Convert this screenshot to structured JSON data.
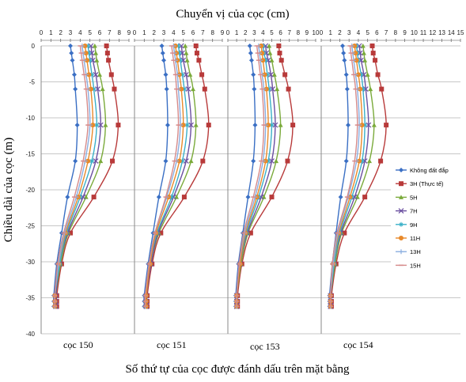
{
  "chart_data": {
    "type": "line",
    "title": "Chuyển vị của cọc (cm)",
    "ylabel": "Chiều dài của cọc (m)",
    "xlabel": "Số thứ tự của cọc được đánh dấu trên mặt bằng",
    "ylim": [
      -40,
      0
    ],
    "y_ticks": [
      0,
      -5,
      -10,
      -15,
      -20,
      -25,
      -30,
      -35,
      -40
    ],
    "depths": [
      0,
      -1,
      -2,
      -4,
      -6,
      -11,
      -16,
      -21,
      -26,
      -30.3,
      -34.7,
      -35.5,
      -36.2
    ],
    "series_names": [
      "Không đất đắp",
      "3H (Thực tế)",
      "5H",
      "7H",
      "9H",
      "11H",
      "13H",
      "15H"
    ],
    "series_colors": [
      "#3a6fc4",
      "#b83a3a",
      "#7aaa3a",
      "#6b4fa0",
      "#3ab0c8",
      "#e8892a",
      "#8aaee0",
      "#d68a8a"
    ],
    "series_markers": [
      "diamond",
      "square",
      "triangle",
      "x",
      "star",
      "circle",
      "plus",
      "dash"
    ],
    "legend_position": "right",
    "panels": [
      {
        "label": "cọc 150",
        "xlim": [
          0,
          9
        ],
        "x_ticks": [
          0,
          1,
          2,
          3,
          4,
          5,
          6,
          7,
          8,
          9
        ],
        "series": [
          {
            "name": "Không đất đắp",
            "x": [
              3.0,
              3.1,
              3.2,
              3.4,
              3.5,
              3.7,
              3.5,
              2.7,
              2.1,
              1.6,
              1.3,
              1.3,
              1.3
            ]
          },
          {
            "name": "3H (Thực tế)",
            "x": [
              6.7,
              6.8,
              6.9,
              7.2,
              7.5,
              7.9,
              7.3,
              5.4,
              3.0,
              2.1,
              1.6,
              1.6,
              1.6
            ]
          },
          {
            "name": "5H",
            "x": [
              5.5,
              5.6,
              5.7,
              6.0,
              6.3,
              6.6,
              6.1,
              4.6,
              2.8,
              2.0,
              1.5,
              1.5,
              1.5
            ]
          },
          {
            "name": "7H",
            "x": [
              5.1,
              5.2,
              5.3,
              5.6,
              5.8,
              6.1,
              5.6,
              4.3,
              2.7,
              1.9,
              1.5,
              1.5,
              1.5
            ]
          },
          {
            "name": "9H",
            "x": [
              4.8,
              4.9,
              5.0,
              5.2,
              5.4,
              5.7,
              5.2,
              4.0,
              2.6,
              1.9,
              1.4,
              1.4,
              1.4
            ]
          },
          {
            "name": "11H",
            "x": [
              4.5,
              4.6,
              4.7,
              4.9,
              5.1,
              5.3,
              4.8,
              3.8,
              2.5,
              1.8,
              1.4,
              1.4,
              1.4
            ]
          },
          {
            "name": "13H",
            "x": [
              4.2,
              4.3,
              4.4,
              4.6,
              4.8,
              5.0,
              4.5,
              3.6,
              2.4,
              1.8,
              1.4,
              1.4,
              1.4
            ]
          },
          {
            "name": "15H",
            "x": [
              4.0,
              4.1,
              4.2,
              4.4,
              4.6,
              4.8,
              4.3,
              3.4,
              2.3,
              1.7,
              1.4,
              1.4,
              1.4
            ]
          }
        ]
      },
      {
        "label": "cọc 151",
        "xlim": [
          0,
          9
        ],
        "x_ticks": [
          0,
          1,
          2,
          3,
          4,
          5,
          6,
          7,
          8,
          9
        ],
        "series": [
          {
            "name": "Không đất đắp",
            "x": [
              2.8,
              2.9,
              3.0,
              3.2,
              3.3,
              3.4,
              3.2,
              2.5,
              1.9,
              1.4,
              1.0,
              1.0,
              1.0
            ]
          },
          {
            "name": "3H (Thực tế)",
            "x": [
              6.3,
              6.4,
              6.6,
              6.9,
              7.2,
              7.6,
              7.0,
              5.1,
              2.7,
              1.8,
              1.3,
              1.3,
              1.3
            ]
          },
          {
            "name": "5H",
            "x": [
              5.2,
              5.3,
              5.4,
              5.7,
              6.0,
              6.3,
              5.8,
              4.3,
              2.5,
              1.7,
              1.2,
              1.2,
              1.2
            ]
          },
          {
            "name": "7H",
            "x": [
              4.8,
              4.9,
              5.0,
              5.3,
              5.5,
              5.8,
              5.3,
              4.0,
              2.4,
              1.7,
              1.2,
              1.2,
              1.2
            ]
          },
          {
            "name": "9H",
            "x": [
              4.5,
              4.6,
              4.7,
              4.9,
              5.1,
              5.4,
              4.9,
              3.8,
              2.3,
              1.6,
              1.2,
              1.2,
              1.2
            ]
          },
          {
            "name": "11H",
            "x": [
              4.2,
              4.3,
              4.4,
              4.6,
              4.8,
              5.0,
              4.6,
              3.5,
              2.2,
              1.6,
              1.2,
              1.2,
              1.2
            ]
          },
          {
            "name": "13H",
            "x": [
              4.0,
              4.1,
              4.2,
              4.4,
              4.5,
              4.7,
              4.3,
              3.3,
              2.1,
              1.5,
              1.1,
              1.1,
              1.1
            ]
          },
          {
            "name": "15H",
            "x": [
              3.8,
              3.9,
              4.0,
              4.2,
              4.3,
              4.5,
              4.1,
              3.2,
              2.1,
              1.5,
              1.1,
              1.1,
              1.1
            ]
          }
        ]
      },
      {
        "label": "cọc 153",
        "xlim": [
          0,
          10
        ],
        "x_ticks": [
          0,
          1,
          2,
          3,
          4,
          5,
          6,
          7,
          8,
          9,
          10
        ],
        "series": [
          {
            "name": "Không đất đắp",
            "x": [
              2.5,
              2.6,
              2.7,
              2.9,
              3.0,
              3.1,
              2.9,
              2.3,
              1.7,
              1.2,
              0.9,
              0.9,
              0.9
            ]
          },
          {
            "name": "3H (Thực tế)",
            "x": [
              5.8,
              5.9,
              6.1,
              6.5,
              6.9,
              7.4,
              6.8,
              5.0,
              2.6,
              1.6,
              1.1,
              1.1,
              1.1
            ]
          },
          {
            "name": "5H",
            "x": [
              4.7,
              4.8,
              5.0,
              5.3,
              5.6,
              6.0,
              5.5,
              4.1,
              2.3,
              1.5,
              1.0,
              1.0,
              1.0
            ]
          },
          {
            "name": "7H",
            "x": [
              4.3,
              4.4,
              4.6,
              4.9,
              5.1,
              5.4,
              5.0,
              3.8,
              2.2,
              1.4,
              1.0,
              1.0,
              1.0
            ]
          },
          {
            "name": "9H",
            "x": [
              4.0,
              4.1,
              4.3,
              4.5,
              4.7,
              5.0,
              4.6,
              3.5,
              2.1,
              1.4,
              1.0,
              1.0,
              1.0
            ]
          },
          {
            "name": "11H",
            "x": [
              3.8,
              3.9,
              4.0,
              4.2,
              4.4,
              4.6,
              4.3,
              3.3,
              2.0,
              1.4,
              1.0,
              1.0,
              1.0
            ]
          },
          {
            "name": "13H",
            "x": [
              3.5,
              3.6,
              3.7,
              3.9,
              4.1,
              4.3,
              4.0,
              3.1,
              1.9,
              1.3,
              1.0,
              1.0,
              1.0
            ]
          },
          {
            "name": "15H",
            "x": [
              3.3,
              3.4,
              3.5,
              3.7,
              3.9,
              4.1,
              3.8,
              2.9,
              1.8,
              1.3,
              1.0,
              1.0,
              1.0
            ]
          }
        ]
      },
      {
        "label": "cọc 154",
        "xlim": [
          0,
          15
        ],
        "x_ticks": [
          0,
          1,
          2,
          3,
          4,
          5,
          6,
          7,
          8,
          9,
          10,
          11,
          12,
          13,
          14,
          15
        ],
        "series": [
          {
            "name": "Không đất đắp",
            "x": [
              2.3,
              2.4,
              2.5,
              2.7,
              2.8,
              2.9,
              2.7,
              2.1,
              1.6,
              1.2,
              0.9,
              0.9,
              0.9
            ]
          },
          {
            "name": "3H (Thực tế)",
            "x": [
              5.5,
              5.6,
              5.8,
              6.1,
              6.5,
              7.0,
              6.4,
              4.7,
              2.5,
              1.6,
              1.1,
              1.1,
              1.1
            ]
          },
          {
            "name": "5H",
            "x": [
              4.5,
              4.6,
              4.7,
              5.0,
              5.3,
              5.7,
              5.2,
              3.9,
              2.2,
              1.5,
              1.0,
              1.0,
              1.0
            ]
          },
          {
            "name": "7H",
            "x": [
              4.1,
              4.2,
              4.3,
              4.6,
              4.8,
              5.1,
              4.7,
              3.6,
              2.1,
              1.4,
              1.0,
              1.0,
              1.0
            ]
          },
          {
            "name": "9H",
            "x": [
              3.8,
              3.9,
              4.0,
              4.3,
              4.5,
              4.7,
              4.4,
              3.3,
              2.0,
              1.4,
              1.0,
              1.0,
              1.0
            ]
          },
          {
            "name": "11H",
            "x": [
              3.6,
              3.7,
              3.8,
              4.0,
              4.2,
              4.4,
              4.1,
              3.1,
              1.9,
              1.3,
              1.0,
              1.0,
              1.0
            ]
          },
          {
            "name": "13H",
            "x": [
              3.3,
              3.4,
              3.5,
              3.7,
              3.9,
              4.1,
              3.8,
              2.9,
              1.8,
              1.3,
              1.0,
              1.0,
              1.0
            ]
          },
          {
            "name": "15H",
            "x": [
              3.1,
              3.2,
              3.3,
              3.5,
              3.7,
              3.9,
              3.6,
              2.8,
              1.7,
              1.2,
              1.0,
              1.0,
              1.0
            ]
          }
        ]
      }
    ]
  }
}
